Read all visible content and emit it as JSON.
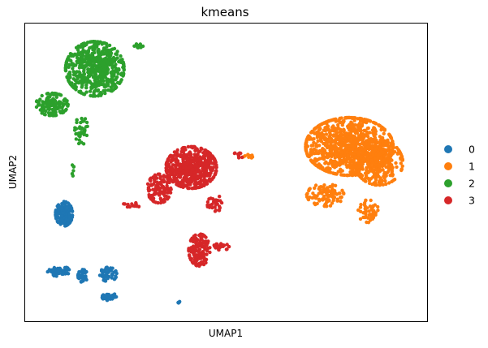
{
  "chart_data": {
    "type": "scatter",
    "title": "kmeans",
    "xlabel": "UMAP1",
    "ylabel": "UMAP2",
    "xticks": [],
    "yticks": [],
    "grid": false,
    "legend_position": "right",
    "series": [
      {
        "name": "0",
        "color": "#1f77b4",
        "clusters": [
          {
            "center": [
              1.45,
              -0.38
            ],
            "spread": [
              0.32,
              0.38
            ],
            "n": 150
          },
          {
            "center": [
              1.25,
              -2.15
            ],
            "spread": [
              0.42,
              0.16
            ],
            "n": 55
          },
          {
            "center": [
              2.15,
              -2.3
            ],
            "spread": [
              0.18,
              0.2
            ],
            "n": 40
          },
          {
            "center": [
              3.1,
              -2.25
            ],
            "spread": [
              0.32,
              0.22
            ],
            "n": 50
          },
          {
            "center": [
              3.15,
              -2.95
            ],
            "spread": [
              0.28,
              0.12
            ],
            "n": 45
          },
          {
            "center": [
              5.75,
              -3.1
            ],
            "spread": [
              0.05,
              0.04
            ],
            "n": 4
          }
        ]
      },
      {
        "name": "1",
        "color": "#ff7f0e",
        "clusters": [
          {
            "center": [
              12.1,
              1.7
            ],
            "spread": [
              1.65,
              0.9
            ],
            "n": 950
          },
          {
            "center": [
              13.2,
              1.2
            ],
            "spread": [
              0.9,
              0.7
            ],
            "n": 300
          },
          {
            "center": [
              11.2,
              0.2
            ],
            "spread": [
              0.7,
              0.35
            ],
            "n": 100
          },
          {
            "center": [
              12.8,
              -0.3
            ],
            "spread": [
              0.4,
              0.35
            ],
            "n": 50
          },
          {
            "center": [
              8.4,
              1.4
            ],
            "spread": [
              0.35,
              0.1
            ],
            "n": 12
          }
        ]
      },
      {
        "name": "2",
        "color": "#2ca02c",
        "clusters": [
          {
            "center": [
              2.6,
              4.1
            ],
            "spread": [
              1.1,
              0.85
            ],
            "n": 600
          },
          {
            "center": [
              1.0,
              3.0
            ],
            "spread": [
              0.6,
              0.35
            ],
            "n": 140
          },
          {
            "center": [
              2.1,
              2.2
            ],
            "spread": [
              0.25,
              0.45
            ],
            "n": 40
          },
          {
            "center": [
              4.25,
              4.8
            ],
            "spread": [
              0.18,
              0.08
            ],
            "n": 18
          },
          {
            "center": [
              1.8,
              1.0
            ],
            "spread": [
              0.06,
              0.22
            ],
            "n": 6
          }
        ]
      },
      {
        "name": "3",
        "color": "#d62728",
        "clusters": [
          {
            "center": [
              6.2,
              1.05
            ],
            "spread": [
              0.95,
              0.65
            ],
            "n": 550
          },
          {
            "center": [
              5.0,
              0.4
            ],
            "spread": [
              0.45,
              0.45
            ],
            "n": 120
          },
          {
            "center": [
              6.5,
              -1.5
            ],
            "spread": [
              0.4,
              0.5
            ],
            "n": 150
          },
          {
            "center": [
              7.3,
              -1.4
            ],
            "spread": [
              0.35,
              0.1
            ],
            "n": 25
          },
          {
            "center": [
              7.1,
              -0.1
            ],
            "spread": [
              0.3,
              0.3
            ],
            "n": 30
          },
          {
            "center": [
              4.0,
              -0.1
            ],
            "spread": [
              0.35,
              0.08
            ],
            "n": 14
          },
          {
            "center": [
              8.0,
              1.45
            ],
            "spread": [
              0.2,
              0.1
            ],
            "n": 10
          }
        ]
      }
    ],
    "xlim": [
      0.0,
      15.0
    ],
    "ylim": [
      -3.7,
      5.5
    ]
  }
}
